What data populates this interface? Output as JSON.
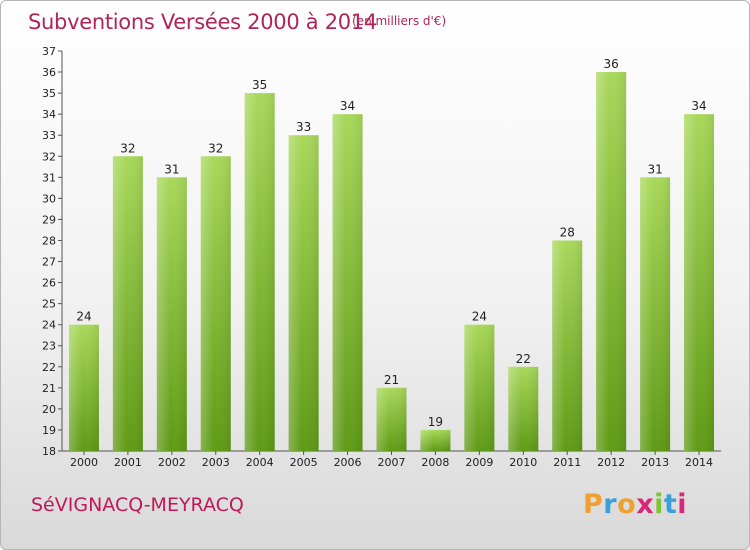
{
  "header": {
    "title": "Subventions Versées 2000 à 2014",
    "subtitle": "(en milliers d'€)"
  },
  "footer": {
    "commune": "SéVIGNACQ-MEYRACQ",
    "logo": [
      "P",
      "r",
      "o",
      "x",
      "i",
      "t",
      "i"
    ]
  },
  "colors": {
    "title": "#b1245a",
    "bar_light": "#a8d85a",
    "bar_dark": "#5f9a16",
    "logo": [
      "#f0a030",
      "#3aa0dd",
      "#f0a030",
      "#d8267a",
      "#7fc234",
      "#3aa0dd",
      "#d8267a"
    ]
  },
  "chart_data": {
    "type": "bar",
    "categories": [
      "2000",
      "2001",
      "2002",
      "2003",
      "2004",
      "2005",
      "2006",
      "2007",
      "2008",
      "2009",
      "2010",
      "2011",
      "2012",
      "2013",
      "2014"
    ],
    "values": [
      24,
      32,
      31,
      32,
      35,
      33,
      34,
      21,
      19,
      24,
      22,
      28,
      36,
      31,
      34
    ],
    "ylim": [
      18,
      37
    ],
    "yticks": [
      18,
      19,
      20,
      21,
      22,
      23,
      24,
      25,
      26,
      27,
      28,
      29,
      30,
      31,
      32,
      33,
      34,
      35,
      36,
      37
    ],
    "grid": false,
    "data_labels": true
  }
}
